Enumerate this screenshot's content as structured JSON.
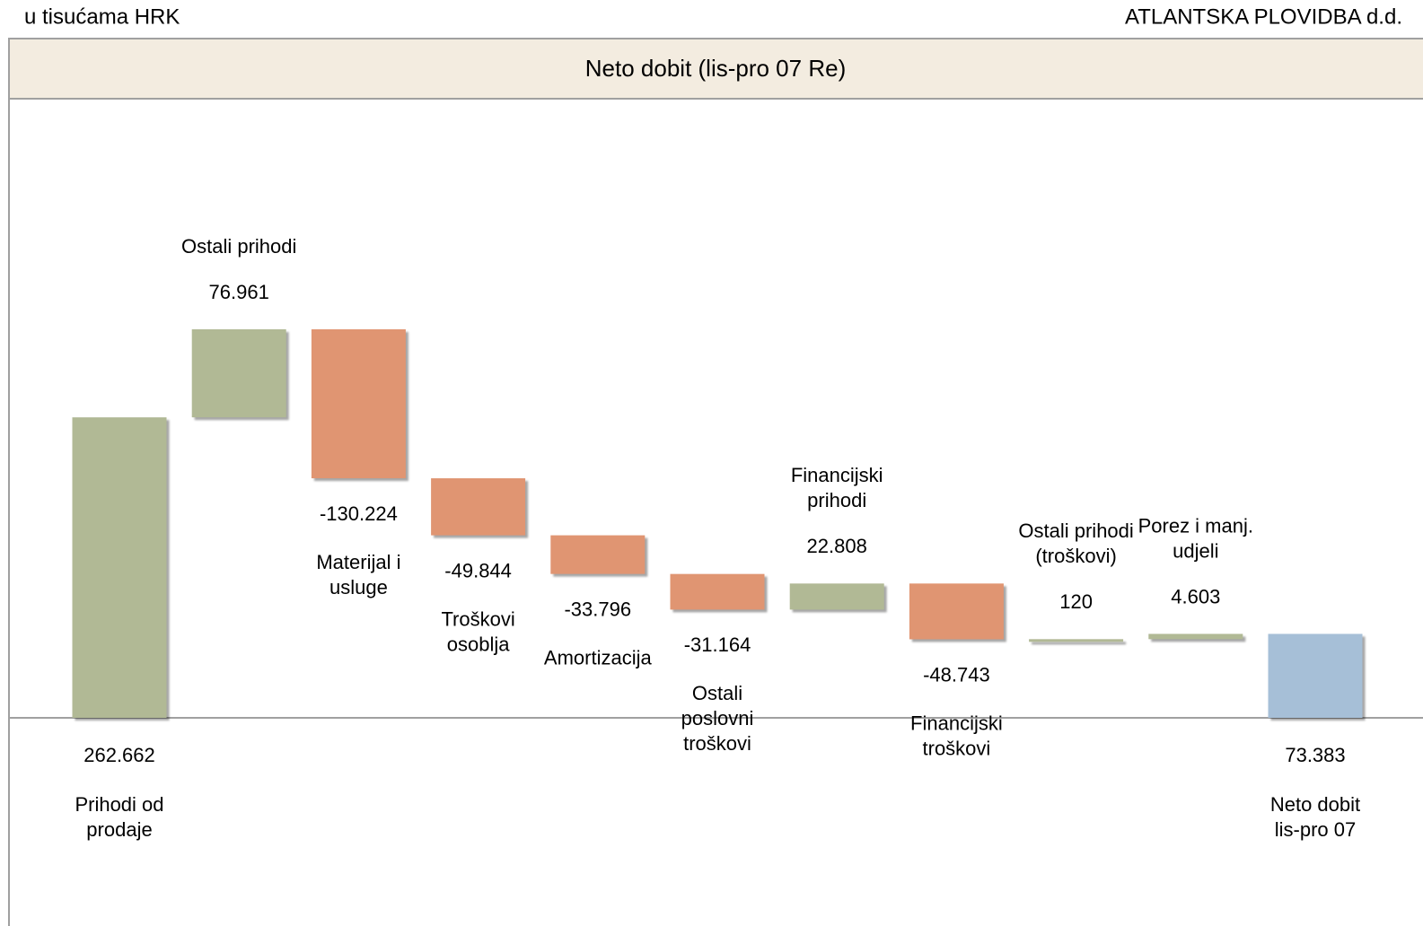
{
  "header": {
    "left": "u tisućama HRK",
    "right": "ATLANTSKA PLOVIDBA d.d."
  },
  "chart_data": {
    "type": "waterfall",
    "title": "Neto dobit (lis-pro 07 Re)",
    "categories": [
      [
        "Prihodi od",
        "prodaje"
      ],
      [
        "Ostali prihodi"
      ],
      [
        "Materijal i",
        "usluge"
      ],
      [
        "Troškovi",
        "osoblja"
      ],
      [
        "Amortizacija"
      ],
      [
        "Ostali",
        "poslovni",
        "troškovi"
      ],
      [
        "Financijski",
        "prihodi"
      ],
      [
        "Financijski",
        "troškovi"
      ],
      [
        "Ostali prihodi",
        "(troškovi)"
      ],
      [
        "Porez i manj.",
        "udjeli"
      ],
      [
        "Neto dobit",
        "lis-pro 07"
      ]
    ],
    "values": [
      262662,
      76961,
      -130224,
      -49844,
      -33796,
      -31164,
      22808,
      -48743,
      120,
      4603,
      73383
    ],
    "value_labels": [
      "262.662",
      "76.961",
      "-130.224",
      "-49.844",
      "-33.796",
      "-31.164",
      "22.808",
      "-48.743",
      "120",
      "4.603",
      "73.383"
    ],
    "measure": [
      "absolute",
      "relative",
      "relative",
      "relative",
      "relative",
      "relative",
      "relative",
      "relative",
      "relative",
      "relative",
      "total"
    ],
    "colors": [
      "#b1b995",
      "#b1b995",
      "#e09572",
      "#e09572",
      "#e09572",
      "#e09572",
      "#b1b995",
      "#e09572",
      "#b1b995",
      "#b1b995",
      "#a6bfd7"
    ]
  }
}
